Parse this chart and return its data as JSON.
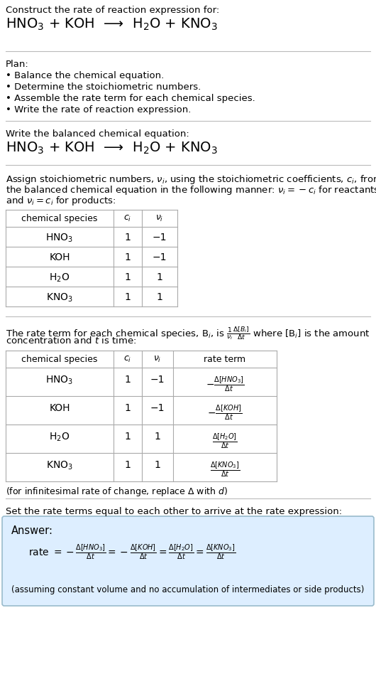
{
  "bg_color": "#ffffff",
  "text_color": "#000000",
  "title_line1": "Construct the rate of reaction expression for:",
  "title_line2": "HNO$_3$ + KOH  ⟶  H$_2$O + KNO$_3$",
  "plan_header": "Plan:",
  "plan_items": [
    "• Balance the chemical equation.",
    "• Determine the stoichiometric numbers.",
    "• Assemble the rate term for each chemical species.",
    "• Write the rate of reaction expression."
  ],
  "section2_header": "Write the balanced chemical equation:",
  "section2_eq": "HNO$_3$ + KOH  ⟶  H$_2$O + KNO$_3$",
  "section3_header_lines": [
    "Assign stoichiometric numbers, $\\nu_i$, using the stoichiometric coefficients, $c_i$, from",
    "the balanced chemical equation in the following manner: $\\nu_i = -c_i$ for reactants",
    "and $\\nu_i = c_i$ for products:"
  ],
  "table1_cols": [
    "chemical species",
    "$c_i$",
    "$\\nu_i$"
  ],
  "table1_rows": [
    [
      "HNO$_3$",
      "1",
      "−1"
    ],
    [
      "KOH",
      "1",
      "−1"
    ],
    [
      "H$_2$O",
      "1",
      "1"
    ],
    [
      "KNO$_3$",
      "1",
      "1"
    ]
  ],
  "section4_header_lines": [
    "The rate term for each chemical species, B$_i$, is $\\frac{1}{\\nu_i}\\frac{\\Delta[B_i]}{\\Delta t}$ where [B$_i$] is the amount",
    "concentration and $t$ is time:"
  ],
  "table2_cols": [
    "chemical species",
    "$c_i$",
    "$\\nu_i$",
    "rate term"
  ],
  "table2_rows": [
    [
      "HNO$_3$",
      "1",
      "−1",
      "$-\\frac{\\Delta[HNO_3]}{\\Delta t}$"
    ],
    [
      "KOH",
      "1",
      "−1",
      "$-\\frac{\\Delta[KOH]}{\\Delta t}$"
    ],
    [
      "H$_2$O",
      "1",
      "1",
      "$\\frac{\\Delta[H_2O]}{\\Delta t}$"
    ],
    [
      "KNO$_3$",
      "1",
      "1",
      "$\\frac{\\Delta[KNO_3]}{\\Delta t}$"
    ]
  ],
  "infinitesimal_note": "(for infinitesimal rate of change, replace Δ with $d$)",
  "section5_header": "Set the rate terms equal to each other to arrive at the rate expression:",
  "answer_box_color": "#ddeeff",
  "answer_box_edge": "#99bbcc",
  "answer_label": "Answer:",
  "answer_eq": "rate $= -\\frac{\\Delta[HNO_3]}{\\Delta t} = -\\frac{\\Delta[KOH]}{\\Delta t} = \\frac{\\Delta[H_2O]}{\\Delta t} = \\frac{\\Delta[KNO_3]}{\\Delta t}$",
  "answer_note": "(assuming constant volume and no accumulation of intermediates or side products)"
}
